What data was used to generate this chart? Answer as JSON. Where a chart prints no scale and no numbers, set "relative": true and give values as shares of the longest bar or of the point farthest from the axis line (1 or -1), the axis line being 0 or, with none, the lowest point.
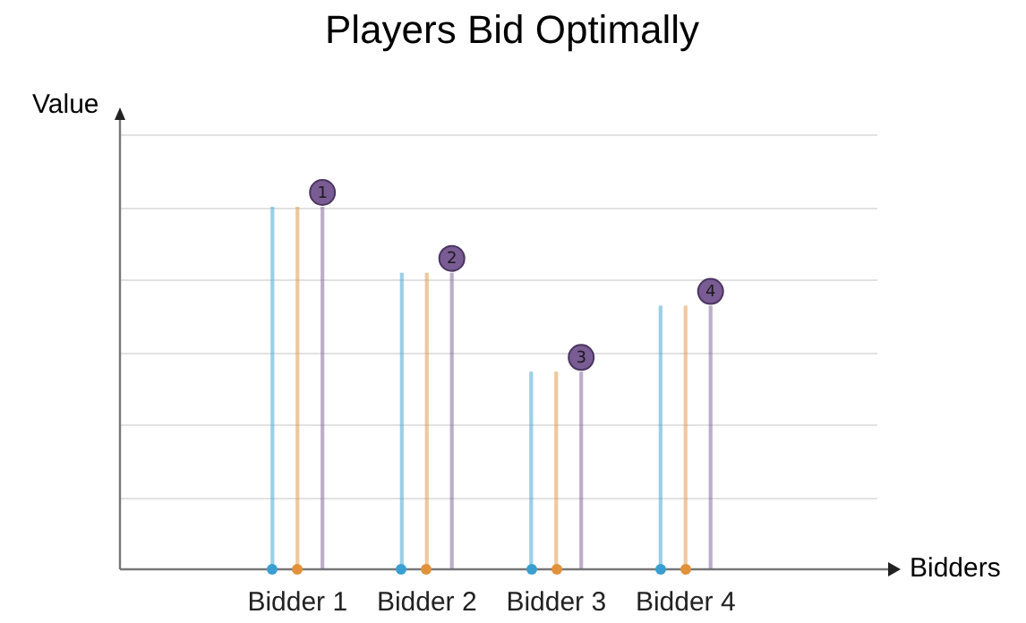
{
  "chart_data": {
    "type": "bar",
    "title": "Players Bid Optimally",
    "relative": true,
    "grid": "y",
    "legend": false,
    "categories": [
      "Bidder 1",
      "Bidder 2",
      "Bidder 3",
      "Bidder 4"
    ],
    "series": [
      {
        "color": "#3a9fd0",
        "marker": "circle",
        "values": [
          1,
          0.818,
          0.545,
          0.727
        ]
      },
      {
        "color": "#e0913a",
        "marker": "circle",
        "values": [
          1,
          0.818,
          0.545,
          0.727
        ]
      },
      {
        "color": "#7a5c94",
        "values": [
          1,
          0.818,
          0.545,
          0.727
        ]
      }
    ],
    "annotations": [
      "Value",
      "Bidders",
      {
        "text": "1",
        "x": "Bidder 1",
        "y": 1
      },
      {
        "text": "2",
        "x": "Bidder 2",
        "y": 0.818
      },
      {
        "text": "3",
        "x": "Bidder 3",
        "y": 0.545
      },
      {
        "text": "4",
        "x": "Bidder 4",
        "y": 0.727
      }
    ]
  }
}
